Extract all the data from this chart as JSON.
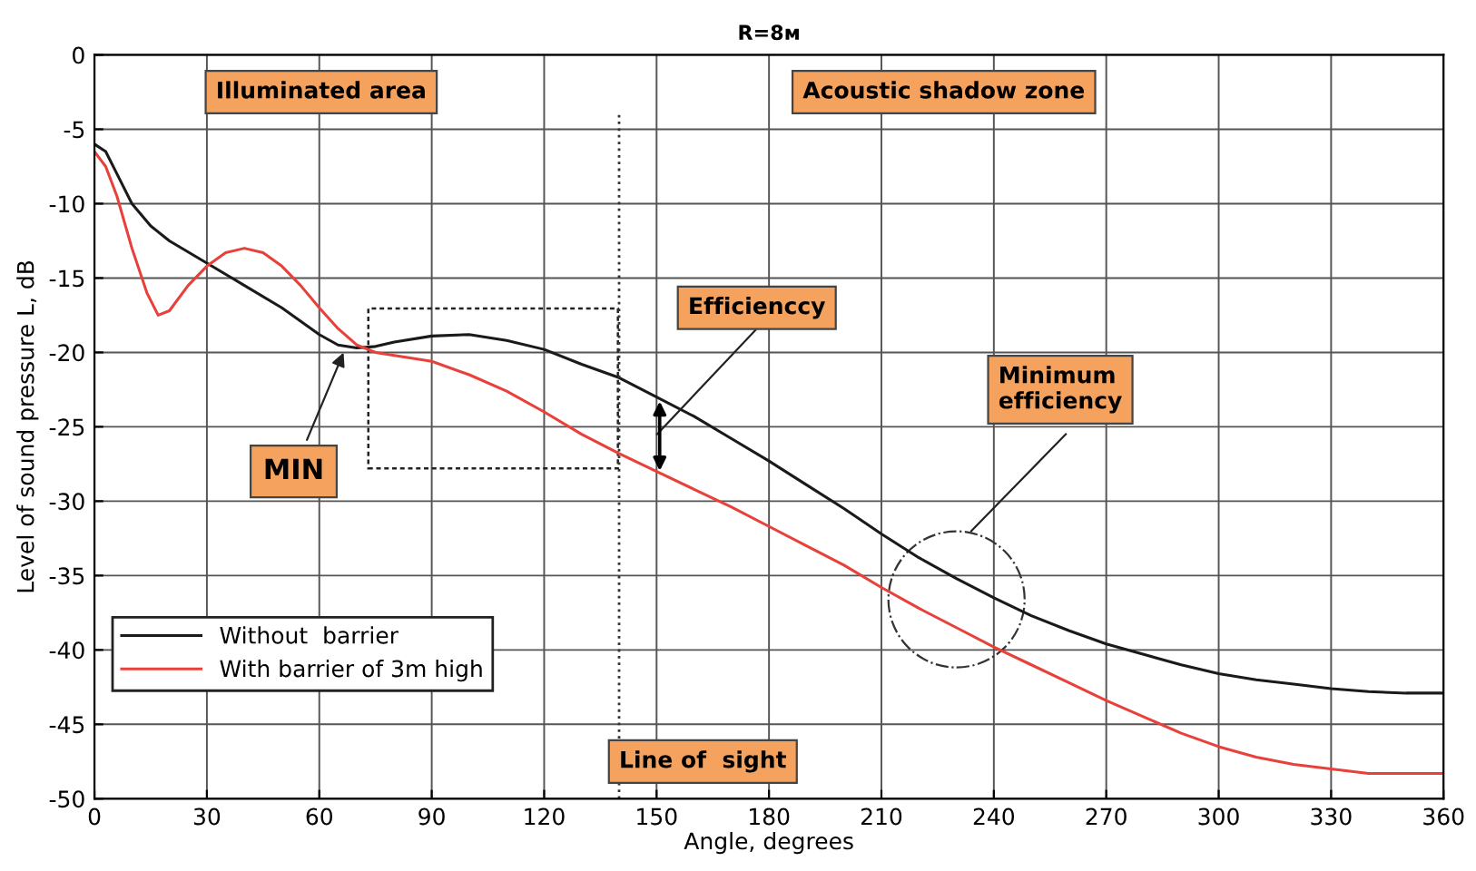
{
  "chart_data": {
    "type": "line",
    "title": "R=8м",
    "xlabel": "Angle, degrees",
    "ylabel": "Level of sound pressure L, dB",
    "x": [
      0,
      3,
      6,
      10,
      15,
      20,
      30,
      40,
      50,
      60,
      65,
      70,
      75,
      80,
      90,
      100,
      110,
      120,
      130,
      140,
      150,
      160,
      170,
      180,
      190,
      200,
      210,
      220,
      230,
      240,
      250,
      260,
      270,
      280,
      290,
      300,
      310,
      320,
      330,
      340,
      350,
      360
    ],
    "series": [
      {
        "name": "Without  barrier",
        "color": "#1a1a1a",
        "values": [
          -6,
          -6.5,
          -8,
          -10,
          -11.5,
          -12.5,
          -14,
          -15.5,
          -17,
          -18.8,
          -19.5,
          -19.7,
          -19.6,
          -19.3,
          -18.9,
          -18.8,
          -19.2,
          -19.8,
          -20.8,
          -21.7,
          -23,
          -24.3,
          -25.8,
          -27.3,
          -28.9,
          -30.5,
          -32.2,
          -33.8,
          -35.2,
          -36.5,
          -37.7,
          -38.7,
          -39.6,
          -40.3,
          -41,
          -41.6,
          -42,
          -42.3,
          -42.6,
          -42.8,
          -42.9,
          -42.9
        ]
      },
      {
        "name": "With barrier of 3m high",
        "color": "#e8403a",
        "x": [
          0,
          3,
          6,
          10,
          14,
          17,
          20,
          25,
          30,
          35,
          40,
          45,
          50,
          55,
          60,
          65,
          70,
          75,
          80,
          90,
          100,
          110,
          120,
          130,
          140,
          150,
          160,
          170,
          180,
          190,
          200,
          210,
          220,
          230,
          240,
          250,
          260,
          270,
          280,
          290,
          300,
          310,
          320,
          330,
          340,
          350,
          360
        ],
        "values": [
          -6.5,
          -7.5,
          -9.5,
          -13,
          -16,
          -17.5,
          -17.2,
          -15.5,
          -14.2,
          -13.3,
          -13,
          -13.3,
          -14.2,
          -15.5,
          -17,
          -18.4,
          -19.5,
          -20,
          -20.2,
          -20.6,
          -21.5,
          -22.6,
          -24,
          -25.5,
          -26.8,
          -28,
          -29.2,
          -30.4,
          -31.7,
          -33,
          -34.3,
          -35.8,
          -37.2,
          -38.5,
          -39.8,
          -41,
          -42.2,
          -43.4,
          -44.5,
          -45.6,
          -46.5,
          -47.2,
          -47.7,
          -48,
          -48.3,
          -48.3,
          -48.3
        ]
      }
    ],
    "xlim": [
      0,
      360
    ],
    "ylim": [
      -50,
      0
    ],
    "xticks": [
      0,
      30,
      60,
      90,
      120,
      150,
      180,
      210,
      240,
      270,
      300,
      330,
      360
    ],
    "yticks": [
      -50,
      -45,
      -40,
      -35,
      -30,
      -25,
      -20,
      -15,
      -10,
      -5,
      0
    ],
    "ref_lines": [
      {
        "axis": "x",
        "value": 140,
        "label": "Line of  sight",
        "line_style": "dotted",
        "color": "#333333"
      }
    ],
    "annotations": [
      "Illuminated area",
      "Acoustic shadow zone",
      {
        "text": "MIN",
        "x": 67,
        "y": -19.7
      },
      "Efficienccy",
      "Minimum\nefficiency"
    ],
    "grid": true,
    "legend": "bottom left",
    "line_style": "solid",
    "marker": "none"
  }
}
